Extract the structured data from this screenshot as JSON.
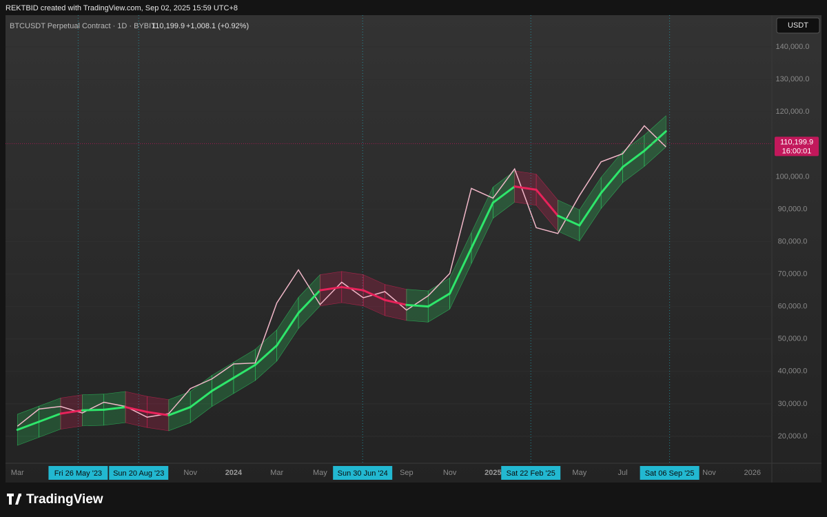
{
  "header": "REKTBID created with TradingView.com, Sep 02, 2025 15:59 UTC+8",
  "brand": "TradingView",
  "chart_data": {
    "type": "line",
    "title": "BTCUSDT Perpetual Contract · 1D · BYBIT",
    "last_price": {
      "value": 110199.9,
      "label": "110,199.9"
    },
    "change": "+1,008.1 (+0.92%)",
    "currency": "USDT",
    "countdown": "16:00:01",
    "categories": [
      "Mar",
      null,
      null,
      null,
      null,
      null,
      null,
      null,
      "Nov",
      null,
      "2024",
      null,
      "Mar",
      null,
      "May",
      null,
      null,
      null,
      "Sep",
      null,
      "Nov",
      null,
      "2025",
      null,
      null,
      null,
      "May",
      null,
      "Jul",
      null,
      null,
      null,
      "Nov",
      null,
      "2026"
    ],
    "series": [
      {
        "color": "#f2b8c9",
        "values": [
          23100,
          28400,
          29200,
          27200,
          30500,
          29200,
          25900,
          27000,
          34700,
          37700,
          42300,
          42600,
          61100,
          71300,
          60600,
          67500,
          62700,
          64600,
          58900,
          63300,
          70200,
          96400,
          93400,
          102400,
          84300,
          82500,
          94200,
          104600,
          107100,
          115700,
          109200,
          null,
          null,
          null,
          null
        ]
      },
      {
        "color": "#2ee66b",
        "down_color": "#e8225a",
        "values": [
          22000,
          24500,
          27000,
          28000,
          28200,
          29000,
          27500,
          26500,
          29000,
          34000,
          38000,
          42000,
          48000,
          58000,
          65000,
          66000,
          65000,
          62000,
          60500,
          60000,
          64000,
          78000,
          92000,
          97000,
          96000,
          88000,
          85000,
          95000,
          103000,
          108000,
          114000,
          null,
          null,
          null,
          null
        ],
        "down": [
          false,
          false,
          false,
          true,
          false,
          false,
          true,
          true,
          false,
          false,
          false,
          false,
          false,
          false,
          false,
          true,
          true,
          true,
          true,
          false,
          false,
          false,
          false,
          false,
          true,
          true,
          false,
          false,
          false,
          false,
          false,
          null,
          null,
          null,
          null
        ]
      }
    ],
    "band_half_width": 4800,
    "xlim": [
      -0.55,
      34.9
    ],
    "ylim": [
      11700,
      149800
    ],
    "yticks": [
      {
        "value": 20000,
        "label": "20,000.0"
      },
      {
        "value": 30000,
        "label": "30,000.0"
      },
      {
        "value": 40000,
        "label": "40,000.0"
      },
      {
        "value": 50000,
        "label": "50,000.0"
      },
      {
        "value": 60000,
        "label": "60,000.0"
      },
      {
        "value": 70000,
        "label": "70,000.0"
      },
      {
        "value": 80000,
        "label": "80,000.0"
      },
      {
        "value": 90000,
        "label": "90,000.0"
      },
      {
        "value": 100000,
        "label": "100,000.0"
      },
      {
        "value": 110000,
        "label": "110,000.0"
      },
      {
        "value": 120000,
        "label": "120,000.0"
      },
      {
        "value": 130000,
        "label": "130,000.0"
      },
      {
        "value": 140000,
        "label": "140,000.0"
      }
    ],
    "grid": true,
    "highlights": [
      {
        "x": 2.81,
        "label": "Fri 26 May '23"
      },
      {
        "x": 5.61,
        "label": "Sun 20 Aug '23"
      },
      {
        "x": 15.97,
        "label": "Sun 30 Jun '24"
      },
      {
        "x": 23.75,
        "label": "Sat 22 Feb '25"
      },
      {
        "x": 30.17,
        "label": "Sat 06 Sep '25"
      }
    ]
  }
}
